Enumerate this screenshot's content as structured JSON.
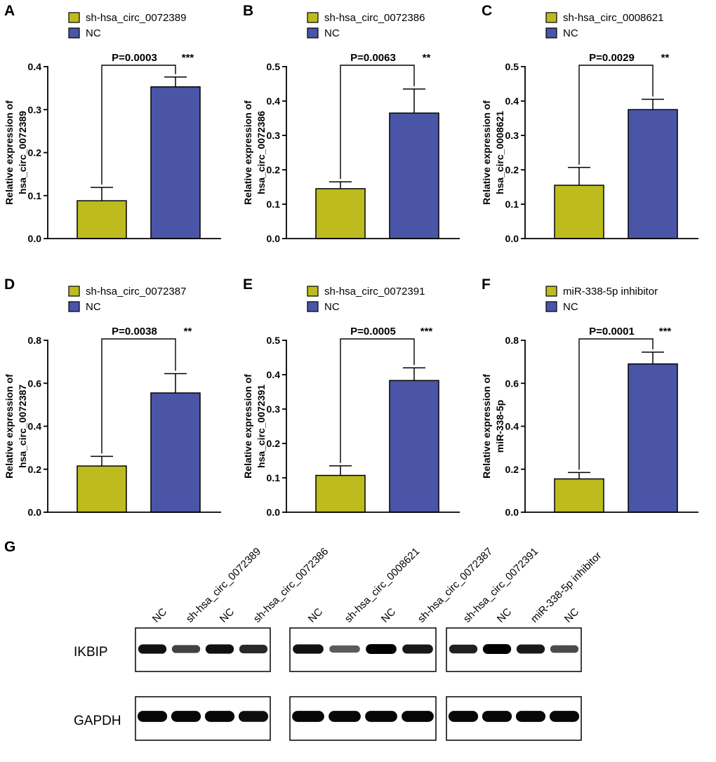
{
  "colors": {
    "treatment": "#bdbb1e",
    "control": "#4a55a8",
    "axis": "#000000"
  },
  "chart_data": [
    {
      "id": "A",
      "type": "bar",
      "panel_label": "A",
      "categories": [
        "sh-hsa_circ_0072389",
        "NC"
      ],
      "legend": [
        "sh-hsa_circ_0072389",
        "NC"
      ],
      "values": [
        0.088,
        0.353
      ],
      "errors": [
        0.031,
        0.023
      ],
      "ylabel": [
        "Relative expression of",
        "hsa_circ_0072389"
      ],
      "ylim": [
        0,
        0.4
      ],
      "yticks": [
        "0.0",
        "0.1",
        "0.2",
        "0.3",
        "0.4"
      ],
      "pvalue": "P=0.0003",
      "stars": "***"
    },
    {
      "id": "B",
      "type": "bar",
      "panel_label": "B",
      "categories": [
        "sh-hsa_circ_0072386",
        "NC"
      ],
      "legend": [
        "sh-hsa_circ_0072386",
        "NC"
      ],
      "values": [
        0.145,
        0.365
      ],
      "errors": [
        0.02,
        0.07
      ],
      "ylabel": [
        "Relative expression of",
        "hsa_circ_0072386"
      ],
      "ylim": [
        0,
        0.5
      ],
      "yticks": [
        "0.0",
        "0.1",
        "0.2",
        "0.3",
        "0.4",
        "0.5"
      ],
      "pvalue": "P=0.0063",
      "stars": "**"
    },
    {
      "id": "C",
      "type": "bar",
      "panel_label": "C",
      "categories": [
        "sh-hsa_circ_0008621",
        "NC"
      ],
      "legend": [
        "sh-hsa_circ_0008621",
        "NC"
      ],
      "values": [
        0.155,
        0.375
      ],
      "errors": [
        0.052,
        0.03
      ],
      "ylabel": [
        "Relative expression of",
        "hsa_circ_0008621"
      ],
      "ylim": [
        0,
        0.5
      ],
      "yticks": [
        "0.0",
        "0.1",
        "0.2",
        "0.3",
        "0.4",
        "0.5"
      ],
      "pvalue": "P=0.0029",
      "stars": "**"
    },
    {
      "id": "D",
      "type": "bar",
      "panel_label": "D",
      "categories": [
        "sh-hsa_circ_0072387",
        "NC"
      ],
      "legend": [
        "sh-hsa_circ_0072387",
        "NC"
      ],
      "values": [
        0.215,
        0.555
      ],
      "errors": [
        0.045,
        0.09
      ],
      "ylabel": [
        "Relative expression of",
        "hsa_circ_0072387"
      ],
      "ylim": [
        0,
        0.8
      ],
      "yticks": [
        "0.0",
        "0.2",
        "0.4",
        "0.6",
        "0.8"
      ],
      "pvalue": "P=0.0038",
      "stars": "**"
    },
    {
      "id": "E",
      "type": "bar",
      "panel_label": "E",
      "categories": [
        "sh-hsa_circ_0072391",
        "NC"
      ],
      "legend": [
        "sh-hsa_circ_0072391",
        "NC"
      ],
      "values": [
        0.107,
        0.383
      ],
      "errors": [
        0.028,
        0.037
      ],
      "ylabel": [
        "Relative expression of",
        "hsa_circ_0072391"
      ],
      "ylim": [
        0,
        0.5
      ],
      "yticks": [
        "0.0",
        "0.1",
        "0.2",
        "0.3",
        "0.4",
        "0.5"
      ],
      "pvalue": "P=0.0005",
      "stars": "***"
    },
    {
      "id": "F",
      "type": "bar",
      "panel_label": "F",
      "categories": [
        "miR-338-5p inhibitor",
        "NC"
      ],
      "legend": [
        "miR-338-5p inhibitor",
        "NC"
      ],
      "values": [
        0.155,
        0.69
      ],
      "errors": [
        0.03,
        0.055
      ],
      "ylabel": [
        "Relative expression of",
        "miR-338-5p"
      ],
      "ylim": [
        0,
        0.8
      ],
      "yticks": [
        "0.0",
        "0.2",
        "0.4",
        "0.6",
        "0.8"
      ],
      "pvalue": "P=0.0001",
      "stars": "***"
    }
  ],
  "blot": {
    "panel_label": "G",
    "rows": [
      "IKBIP",
      "GAPDH"
    ],
    "groups": [
      {
        "lanes": [
          "NC",
          "sh-hsa_circ_0072389",
          "NC",
          "sh-hsa_circ_0072386"
        ],
        "ikbip_intensity": [
          0.9,
          0.6,
          0.9,
          0.75
        ],
        "gapdh_intensity": [
          0.95,
          0.95,
          0.95,
          0.9
        ]
      },
      {
        "lanes": [
          "NC",
          "sh-hsa_circ_0008621",
          "NC",
          "sh-hsa_circ_0072387"
        ],
        "ikbip_intensity": [
          0.9,
          0.45,
          1.0,
          0.85
        ],
        "gapdh_intensity": [
          0.95,
          0.95,
          0.95,
          0.95
        ]
      },
      {
        "lanes": [
          "sh-hsa_circ_0072391",
          "NC",
          "miR-338-5p inhibitor",
          "NC"
        ],
        "ikbip_intensity": [
          0.8,
          1.0,
          0.85,
          0.55
        ],
        "gapdh_intensity": [
          0.95,
          0.95,
          0.95,
          0.95
        ]
      }
    ]
  }
}
